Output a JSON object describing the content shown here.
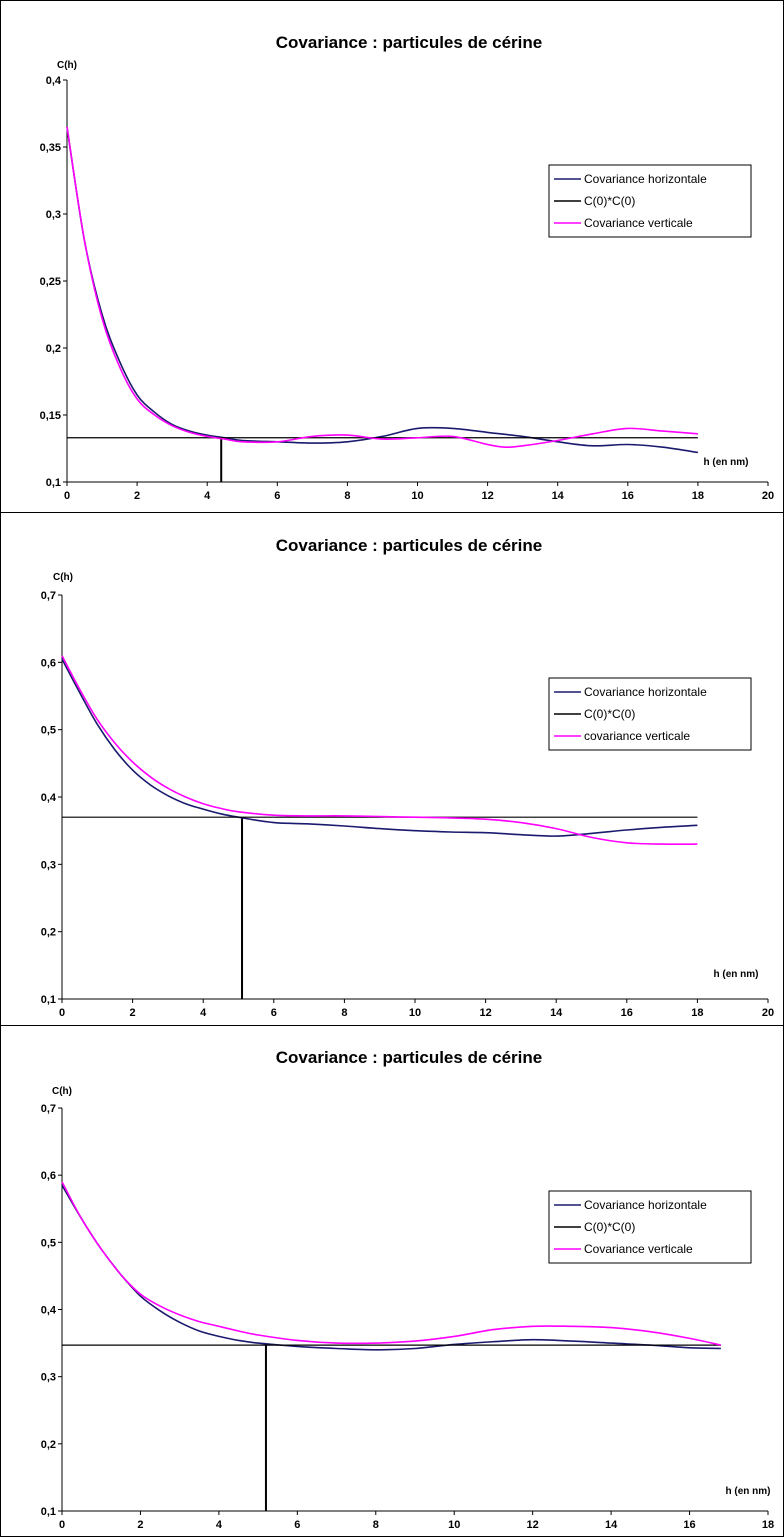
{
  "chart_data": [
    {
      "type": "line",
      "title": "Covariance : particules de cérine",
      "ylabel": "C(h)",
      "xlabel": "h (en nm)",
      "xlim": [
        0,
        20
      ],
      "ylim": [
        0.1,
        0.4
      ],
      "xticks": [
        "0",
        "2",
        "4",
        "6",
        "8",
        "10",
        "12",
        "14",
        "16",
        "18",
        "20"
      ],
      "yticks": [
        "0,1",
        "0,15",
        "0,2",
        "0,25",
        "0,3",
        "0,35",
        "0,4"
      ],
      "legend_position": "right",
      "series": [
        {
          "name": "Covariance horizontale",
          "color": "#1a1a6e",
          "x": [
            0,
            0.5,
            1,
            1.5,
            2,
            2.5,
            3,
            3.5,
            4,
            4.5,
            5,
            6,
            7,
            8,
            9,
            10,
            11,
            12,
            13,
            14,
            15,
            16,
            17,
            18
          ],
          "y": [
            0.365,
            0.28,
            0.225,
            0.19,
            0.165,
            0.152,
            0.143,
            0.138,
            0.135,
            0.133,
            0.131,
            0.13,
            0.129,
            0.13,
            0.134,
            0.14,
            0.14,
            0.137,
            0.134,
            0.13,
            0.127,
            0.128,
            0.126,
            0.122
          ]
        },
        {
          "name": "C(0)*C(0)",
          "color": "#000000",
          "x": [
            0,
            18
          ],
          "y": [
            0.133,
            0.133
          ]
        },
        {
          "name": "Covariance verticale",
          "color": "#ff00ff",
          "x": [
            0,
            0.5,
            1,
            1.5,
            2,
            2.5,
            3,
            3.5,
            4,
            4.5,
            5,
            6,
            7,
            8,
            9,
            10,
            11,
            12,
            12.5,
            13,
            14,
            15,
            16,
            17,
            18
          ],
          "y": [
            0.365,
            0.28,
            0.222,
            0.186,
            0.162,
            0.15,
            0.142,
            0.137,
            0.134,
            0.132,
            0.13,
            0.13,
            0.134,
            0.135,
            0.132,
            0.133,
            0.134,
            0.128,
            0.126,
            0.127,
            0.131,
            0.136,
            0.14,
            0.138,
            0.136
          ]
        }
      ],
      "marker_x": 4.4
    },
    {
      "type": "line",
      "title": "Covariance : particules de cérine",
      "ylabel": "C(h)",
      "xlabel": "h (en nm)",
      "xlim": [
        0,
        20
      ],
      "ylim": [
        0.1,
        0.7
      ],
      "xticks": [
        "0",
        "2",
        "4",
        "6",
        "8",
        "10",
        "12",
        "14",
        "16",
        "18",
        "20"
      ],
      "yticks": [
        "0,1",
        "0,2",
        "0,3",
        "0,4",
        "0,5",
        "0,6",
        "0,7"
      ],
      "legend_position": "right",
      "series": [
        {
          "name": "Covariance horizontale",
          "color": "#1a1a6e",
          "x": [
            0,
            0.5,
            1,
            1.5,
            2,
            2.5,
            3,
            3.5,
            4,
            4.5,
            5,
            6,
            7,
            8,
            9,
            10,
            11,
            12,
            13,
            14,
            15,
            16,
            17,
            18
          ],
          "y": [
            0.605,
            0.555,
            0.508,
            0.47,
            0.44,
            0.418,
            0.402,
            0.39,
            0.382,
            0.375,
            0.37,
            0.362,
            0.36,
            0.357,
            0.353,
            0.35,
            0.348,
            0.347,
            0.344,
            0.342,
            0.346,
            0.351,
            0.355,
            0.358
          ]
        },
        {
          "name": "C(0)*C(0)",
          "color": "#000000",
          "x": [
            0,
            18
          ],
          "y": [
            0.37,
            0.37
          ]
        },
        {
          "name": "covariance verticale",
          "color": "#ff00ff",
          "x": [
            0,
            0.5,
            1,
            1.5,
            2,
            2.5,
            3,
            3.5,
            4,
            4.5,
            5,
            6,
            7,
            8,
            9,
            10,
            11,
            12,
            13,
            14,
            15,
            16,
            17,
            18
          ],
          "y": [
            0.61,
            0.56,
            0.515,
            0.48,
            0.452,
            0.43,
            0.413,
            0.4,
            0.39,
            0.383,
            0.378,
            0.373,
            0.372,
            0.372,
            0.371,
            0.37,
            0.369,
            0.367,
            0.362,
            0.353,
            0.34,
            0.332,
            0.33,
            0.33
          ]
        }
      ],
      "marker_x": 5.1
    },
    {
      "type": "line",
      "title": "Covariance : particules de cérine",
      "ylabel": "C(h)",
      "xlabel": "h (en nm)",
      "xlim": [
        0,
        18
      ],
      "ylim": [
        0.1,
        0.7
      ],
      "xticks": [
        "0",
        "2",
        "4",
        "6",
        "8",
        "10",
        "12",
        "14",
        "16",
        "18"
      ],
      "yticks": [
        "0,1",
        "0,2",
        "0,3",
        "0,4",
        "0,5",
        "0,6",
        "0,7"
      ],
      "legend_position": "right",
      "series": [
        {
          "name": "Covariance horizontale",
          "color": "#1a1a6e",
          "x": [
            0,
            0.5,
            1,
            1.5,
            2,
            2.5,
            3,
            3.5,
            4,
            4.5,
            5,
            6,
            7,
            8,
            9,
            10,
            11,
            12,
            13,
            14,
            15,
            16,
            16.8
          ],
          "y": [
            0.585,
            0.535,
            0.49,
            0.452,
            0.42,
            0.398,
            0.381,
            0.368,
            0.36,
            0.354,
            0.35,
            0.345,
            0.342,
            0.34,
            0.342,
            0.348,
            0.352,
            0.355,
            0.353,
            0.35,
            0.347,
            0.343,
            0.342
          ]
        },
        {
          "name": "C(0)*C(0)",
          "color": "#000000",
          "x": [
            0,
            16.8
          ],
          "y": [
            0.347,
            0.347
          ]
        },
        {
          "name": "Covariance verticale",
          "color": "#ff00ff",
          "x": [
            0,
            0.5,
            1,
            1.5,
            2,
            2.5,
            3,
            3.5,
            4,
            4.5,
            5,
            6,
            7,
            8,
            9,
            10,
            11,
            12,
            13,
            14,
            15,
            16,
            16.8
          ],
          "y": [
            0.59,
            0.535,
            0.49,
            0.452,
            0.423,
            0.405,
            0.392,
            0.382,
            0.375,
            0.368,
            0.362,
            0.354,
            0.35,
            0.35,
            0.353,
            0.36,
            0.37,
            0.375,
            0.375,
            0.373,
            0.367,
            0.357,
            0.347
          ]
        }
      ],
      "marker_x": 5.2
    }
  ]
}
